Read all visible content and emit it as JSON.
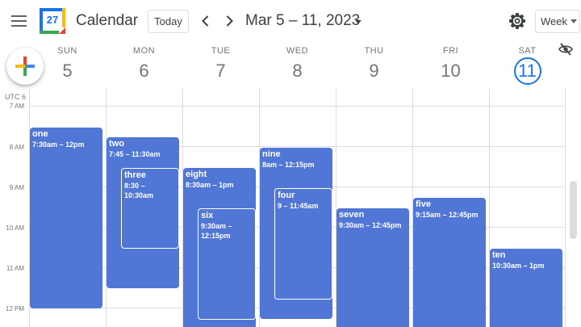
{
  "header": {
    "app_title": "Calendar",
    "logo_day": "27",
    "today_label": "Today",
    "date_range": "Mar 5 – 11, 2023",
    "view_label": "Week"
  },
  "timezone": "UTC 6",
  "hours": [
    "7 AM",
    "8 AM",
    "9 AM",
    "10 AM",
    "11 AM",
    "12 PM"
  ],
  "days": [
    {
      "name": "SUN",
      "num": "5"
    },
    {
      "name": "MON",
      "num": "6"
    },
    {
      "name": "TUE",
      "num": "7"
    },
    {
      "name": "WED",
      "num": "8"
    },
    {
      "name": "THU",
      "num": "9"
    },
    {
      "name": "FRI",
      "num": "10"
    },
    {
      "name": "SAT",
      "num": "11",
      "today": true
    }
  ],
  "events": [
    {
      "title": "one",
      "time": "7:30am – 12pm"
    },
    {
      "title": "two",
      "time": "7:45 – 11:30am"
    },
    {
      "title": "three",
      "time": "8:30 – 10:30am"
    },
    {
      "title": "eight",
      "time": "8:30am – 1pm"
    },
    {
      "title": "six",
      "time": "9:30am – 12:15pm"
    },
    {
      "title": "nine",
      "time": "8am – 12:15pm"
    },
    {
      "title": "four",
      "time": "9 – 11:45am"
    },
    {
      "title": "seven",
      "time": "9:30am – 12:45pm"
    },
    {
      "title": "five",
      "time": "9:15am – 12:45pm"
    },
    {
      "title": "ten",
      "time": "10:30am – 1pm"
    }
  ],
  "colors": {
    "event": "#5177d6",
    "accent": "#1a73e8",
    "gridline": "#dadce0"
  },
  "icons": {
    "menu": "menu-icon",
    "prev": "chevron-left-icon",
    "next": "chevron-right-icon",
    "settings": "gear-icon",
    "create": "plus-icon",
    "hide": "eye-off-icon"
  }
}
